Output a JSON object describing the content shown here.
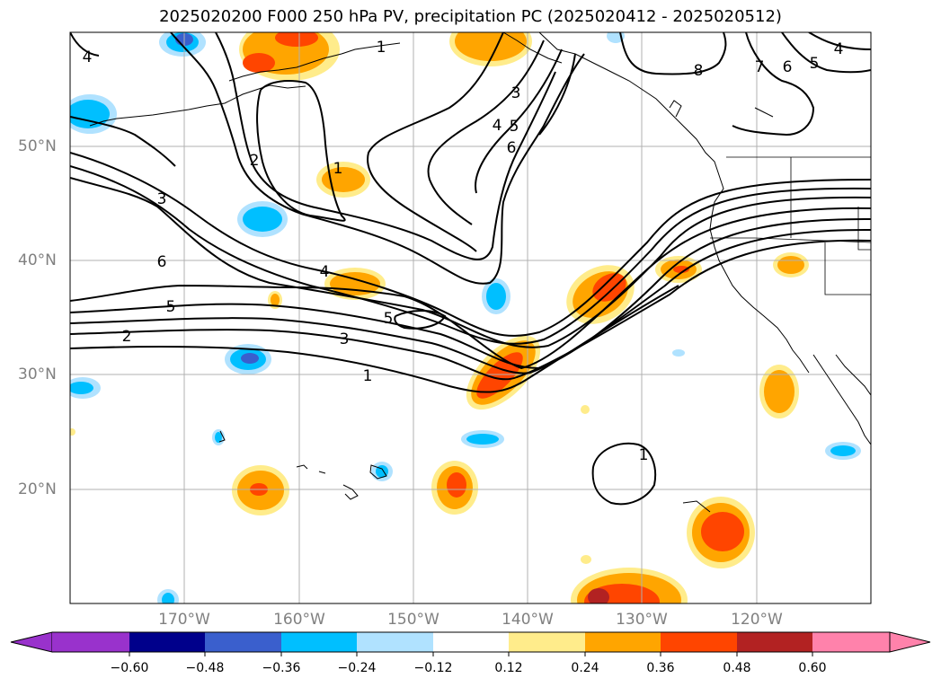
{
  "title": "2025020200 F000 250 hPa PV, precipitation PC (2025020412 - 2025020512)",
  "map": {
    "lon_range": [
      -180,
      -110
    ],
    "lat_range": [
      10,
      60
    ],
    "lat_labels": [
      "50°N",
      "40°N",
      "30°N",
      "20°N"
    ],
    "lon_labels": [
      "170°W",
      "160°W",
      "150°W",
      "140°W",
      "130°W",
      "120°W"
    ],
    "gridlines": true
  },
  "contour_labels": [
    "4",
    "1",
    "8",
    "7",
    "6",
    "5",
    "4",
    "3",
    "4",
    "5",
    "6",
    "2",
    "1",
    "3",
    "6",
    "4",
    "5",
    "2",
    "5",
    "3",
    "1",
    "1"
  ],
  "colorbar": {
    "tick_labels": [
      "−0.60",
      "−0.48",
      "−0.36",
      "−0.24",
      "−0.12",
      "0.12",
      "0.24",
      "0.36",
      "0.48",
      "0.60"
    ],
    "colors": [
      "#9932cc",
      "#00008b",
      "#3a5fcd",
      "#00bfff",
      "#b0e2ff",
      "#ffffff",
      "#ffec8b",
      "#ffa500",
      "#ff4500",
      "#b22222",
      "#ff82ab"
    ]
  }
}
